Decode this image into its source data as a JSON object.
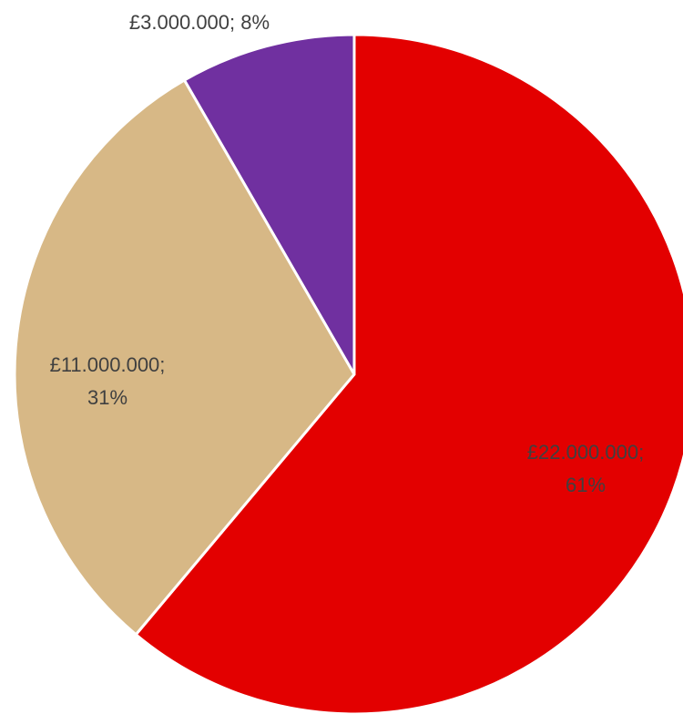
{
  "chart_data": {
    "type": "pie",
    "title": "",
    "start_angle_deg": 0,
    "direction": "clockwise",
    "slices": [
      {
        "value": 22000000,
        "percent": 61,
        "value_label": "£22.000.000;",
        "percent_label": "61%",
        "color": "#E30000"
      },
      {
        "value": 11000000,
        "percent": 31,
        "value_label": "£11.000.000;",
        "percent_label": "31%",
        "color": "#D7B886"
      },
      {
        "value": 3000000,
        "percent": 8,
        "value_label": "£3.000.000; 8%",
        "percent_label": "",
        "color": "#7030A0"
      }
    ]
  }
}
